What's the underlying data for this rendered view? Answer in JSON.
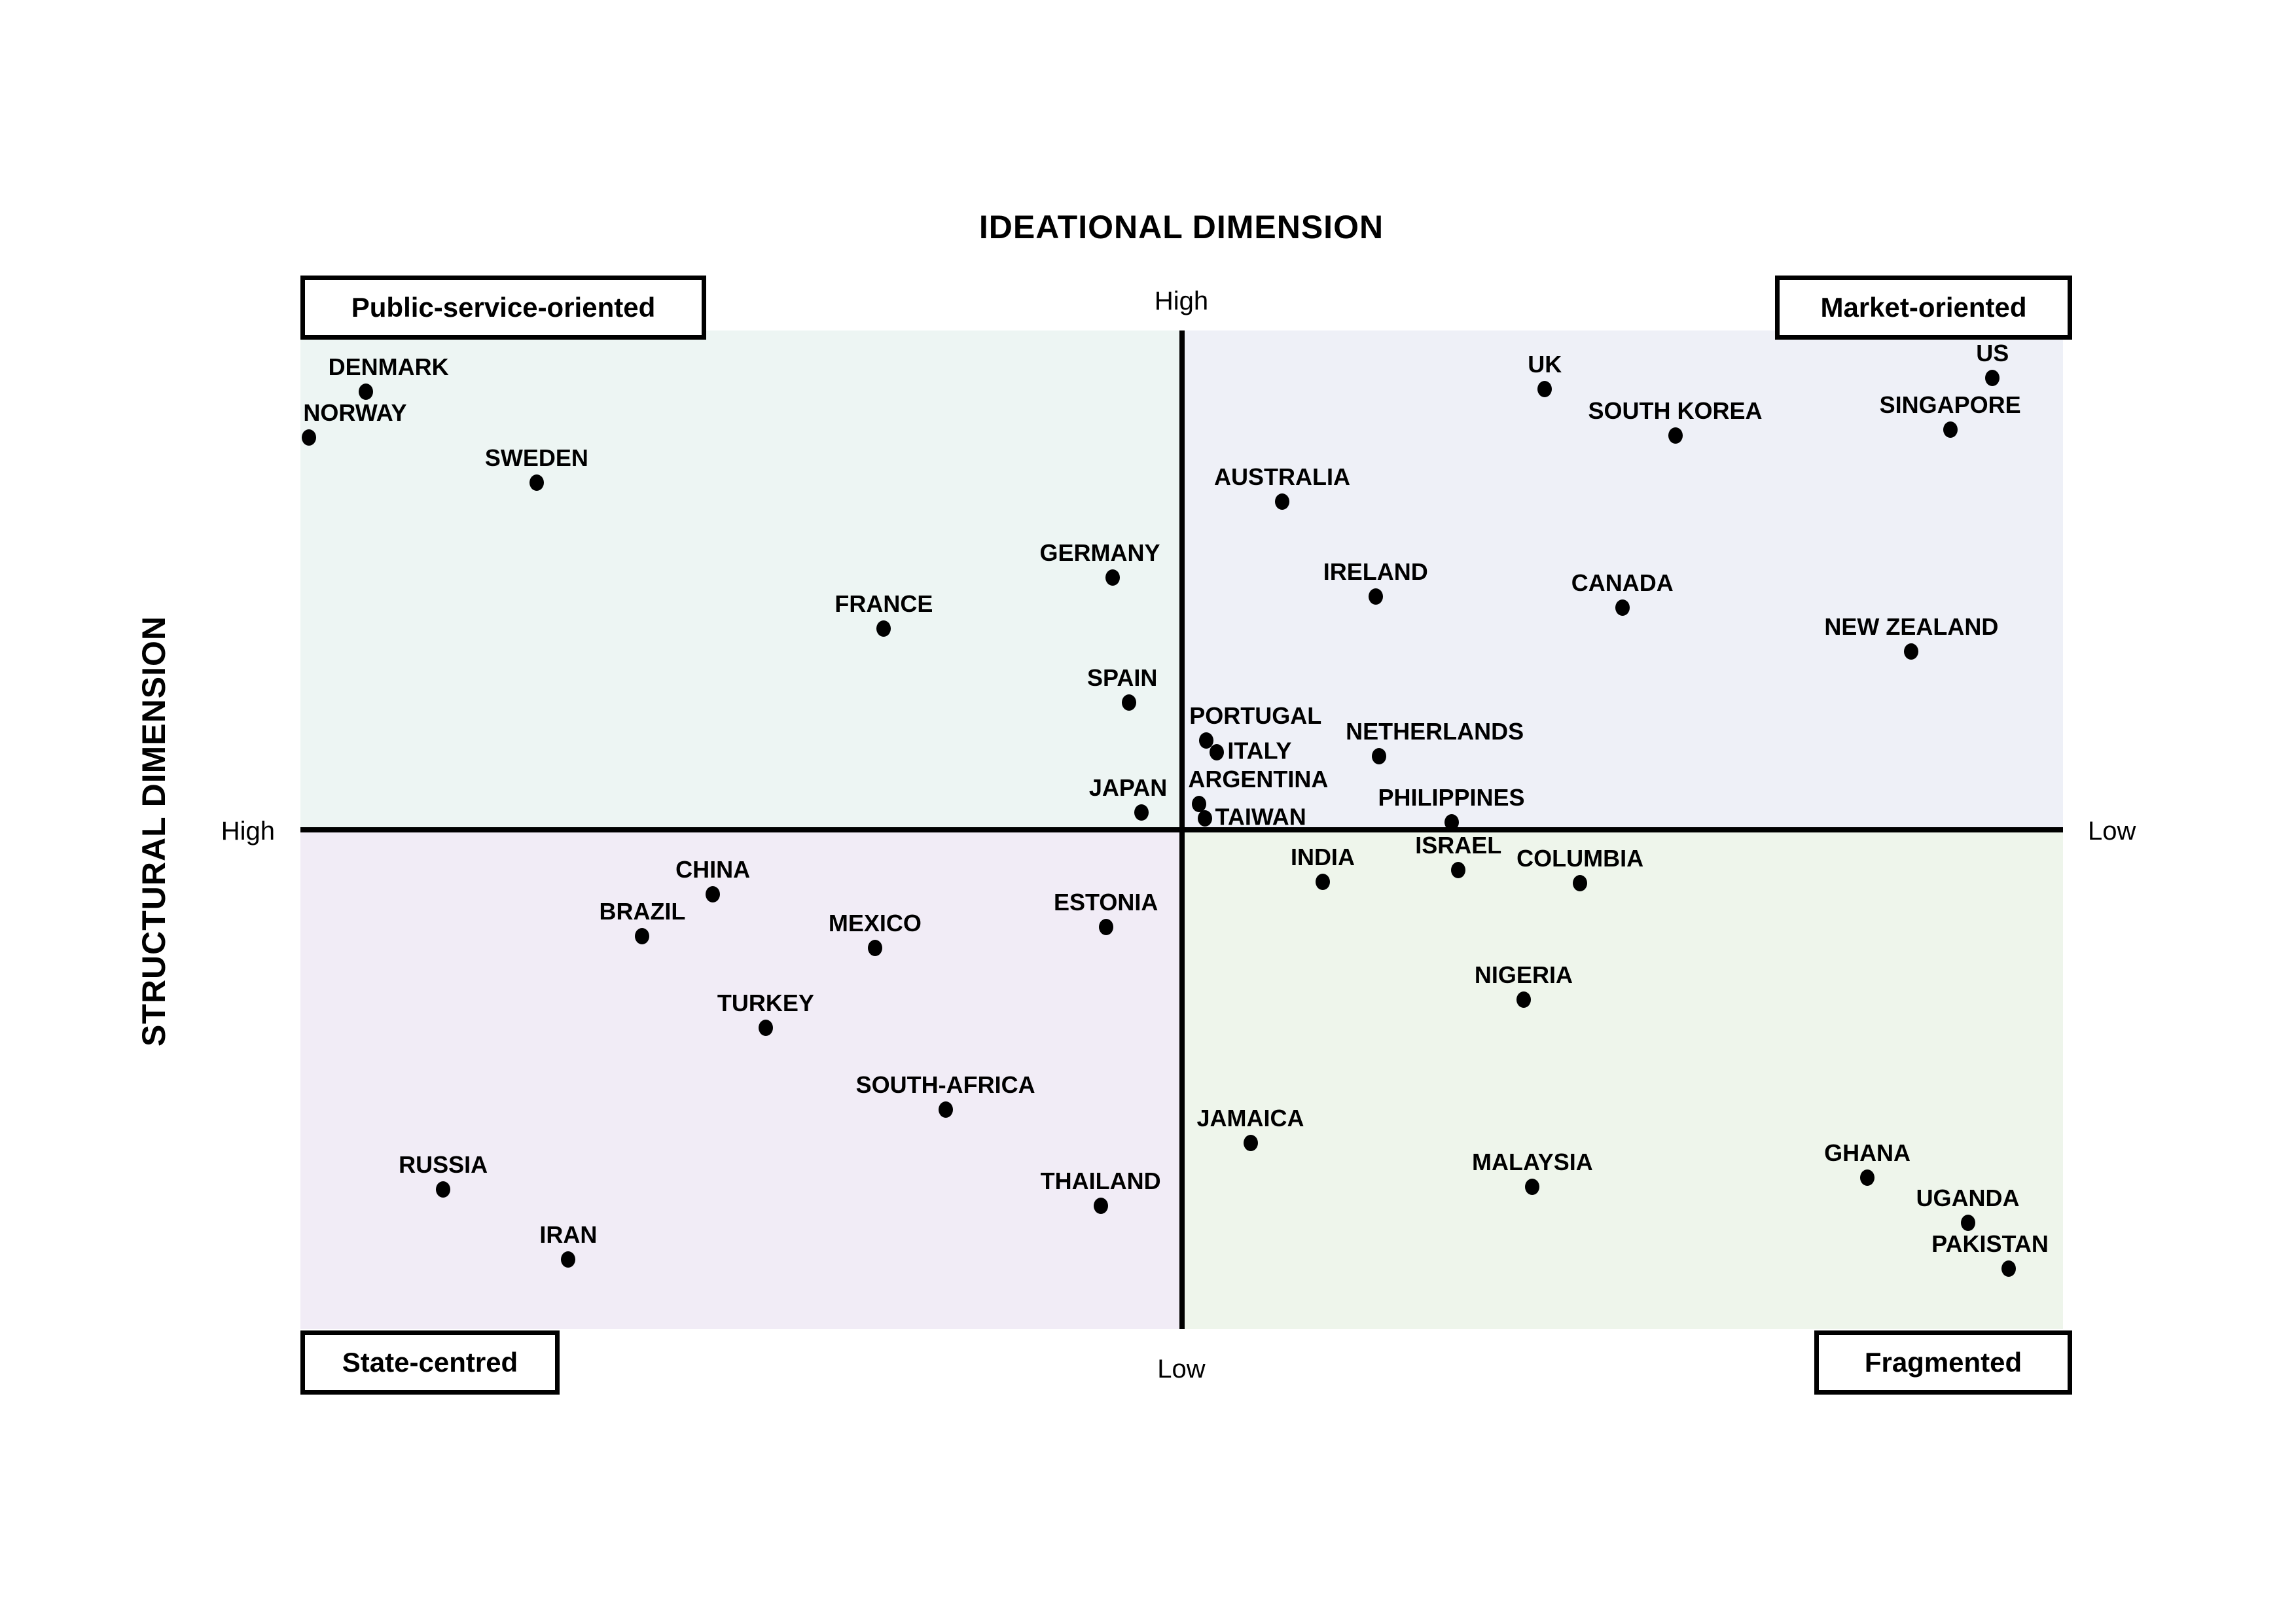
{
  "title": "IDEATIONAL DIMENSION",
  "y_axis_title": "STRUCTURAL DIMENSION",
  "axis_labels": {
    "top": "High",
    "bottom": "Low",
    "left": "High",
    "right": "Low"
  },
  "quadrant_boxes": {
    "top_left": "Public-service-oriented",
    "top_right": "Market-oriented",
    "bottom_left": "State-centred",
    "bottom_right": "Fragmented"
  },
  "colors": {
    "quad_top_left": "#edf5f3",
    "quad_top_right": "#eef0f7",
    "quad_bottom_left": "#f1ecf6",
    "quad_bottom_right": "#eef5eb",
    "axis": "#000000",
    "dot": "#000000",
    "background": "#ffffff"
  },
  "chart_data": {
    "type": "scatter",
    "title": "IDEATIONAL DIMENSION",
    "x_axis": {
      "dimension": "STRUCTURAL DIMENSION",
      "left_label": "High",
      "right_label": "Low"
    },
    "y_axis": {
      "dimension": "IDEATIONAL DIMENSION",
      "top_label": "High",
      "bottom_label": "Low"
    },
    "axis_cross": {
      "x_pct": 50,
      "y_pct": 50
    },
    "legend_position": "none",
    "grid": false,
    "quadrants": {
      "top_left": "Public-service-oriented",
      "top_right": "Market-oriented",
      "bottom_left": "State-centred",
      "bottom_right": "Fragmented"
    },
    "points": [
      {
        "label": "DENMARK",
        "x_pct": 3.7,
        "y_pct": 6.1,
        "quadrant": "Public-service-oriented",
        "label_pos": "above",
        "label_dx": 35
      },
      {
        "label": "NORWAY",
        "x_pct": 0.5,
        "y_pct": 10.7,
        "quadrant": "Public-service-oriented",
        "label_pos": "above",
        "label_dx": 70
      },
      {
        "label": "SWEDEN",
        "x_pct": 13.4,
        "y_pct": 15.2,
        "quadrant": "Public-service-oriented",
        "label_pos": "above",
        "label_dx": 0
      },
      {
        "label": "GERMANY",
        "x_pct": 46.1,
        "y_pct": 24.7,
        "quadrant": "Public-service-oriented",
        "label_pos": "above",
        "label_dx": -20
      },
      {
        "label": "FRANCE",
        "x_pct": 33.1,
        "y_pct": 29.8,
        "quadrant": "Public-service-oriented",
        "label_pos": "above",
        "label_dx": 0
      },
      {
        "label": "SPAIN",
        "x_pct": 47.0,
        "y_pct": 37.2,
        "quadrant": "Public-service-oriented",
        "label_pos": "above",
        "label_dx": -10
      },
      {
        "label": "JAPAN",
        "x_pct": 47.7,
        "y_pct": 48.2,
        "quadrant": "Public-service-oriented",
        "label_pos": "above",
        "label_dx": -20
      },
      {
        "label": "UK",
        "x_pct": 70.6,
        "y_pct": 5.8,
        "quadrant": "Market-oriented",
        "label_pos": "above",
        "label_dx": 0
      },
      {
        "label": "US",
        "x_pct": 96.0,
        "y_pct": 4.7,
        "quadrant": "Market-oriented",
        "label_pos": "above",
        "label_dx": 0
      },
      {
        "label": "SOUTH KOREA",
        "x_pct": 78.0,
        "y_pct": 10.5,
        "quadrant": "Market-oriented",
        "label_pos": "above",
        "label_dx": 0
      },
      {
        "label": "SINGAPORE",
        "x_pct": 93.6,
        "y_pct": 9.9,
        "quadrant": "Market-oriented",
        "label_pos": "above",
        "label_dx": 0
      },
      {
        "label": "AUSTRALIA",
        "x_pct": 55.7,
        "y_pct": 17.1,
        "quadrant": "Market-oriented",
        "label_pos": "above",
        "label_dx": 0
      },
      {
        "label": "IRELAND",
        "x_pct": 61.0,
        "y_pct": 26.6,
        "quadrant": "Market-oriented",
        "label_pos": "above",
        "label_dx": 0
      },
      {
        "label": "CANADA",
        "x_pct": 75.0,
        "y_pct": 27.7,
        "quadrant": "Market-oriented",
        "label_pos": "above",
        "label_dx": 0
      },
      {
        "label": "NEW ZEALAND",
        "x_pct": 91.4,
        "y_pct": 32.1,
        "quadrant": "Market-oriented",
        "label_pos": "above",
        "label_dx": 0
      },
      {
        "label": "PORTUGAL",
        "x_pct": 51.4,
        "y_pct": 41.0,
        "quadrant": "Market-oriented",
        "label_pos": "above",
        "label_dx": 75
      },
      {
        "label": "ITALY",
        "x_pct": 52.0,
        "y_pct": 42.2,
        "quadrant": "Market-oriented",
        "label_pos": "right",
        "label_dx": 0
      },
      {
        "label": "NETHERLANDS",
        "x_pct": 61.2,
        "y_pct": 42.6,
        "quadrant": "Market-oriented",
        "label_pos": "above",
        "label_dx": 85
      },
      {
        "label": "ARGENTINA",
        "x_pct": 51.0,
        "y_pct": 47.4,
        "quadrant": "Market-oriented",
        "label_pos": "above",
        "label_dx": 90
      },
      {
        "label": "TAIWAN",
        "x_pct": 51.3,
        "y_pct": 48.8,
        "quadrant": "Market-oriented",
        "label_pos": "right",
        "label_dx": 0
      },
      {
        "label": "PHILIPPINES",
        "x_pct": 65.3,
        "y_pct": 49.2,
        "quadrant": "Market-oriented",
        "label_pos": "above",
        "label_dx": 0
      },
      {
        "label": "INDIA",
        "x_pct": 58.0,
        "y_pct": 55.2,
        "quadrant": "Fragmented",
        "label_pos": "above",
        "label_dx": 0
      },
      {
        "label": "ISRAEL",
        "x_pct": 65.7,
        "y_pct": 54.0,
        "quadrant": "Fragmented",
        "label_pos": "above",
        "label_dx": 0
      },
      {
        "label": "COLUMBIA",
        "x_pct": 72.6,
        "y_pct": 55.3,
        "quadrant": "Fragmented",
        "label_pos": "above",
        "label_dx": 0
      },
      {
        "label": "NIGERIA",
        "x_pct": 69.4,
        "y_pct": 67.0,
        "quadrant": "Fragmented",
        "label_pos": "above",
        "label_dx": 0
      },
      {
        "label": "JAMAICA",
        "x_pct": 53.9,
        "y_pct": 81.3,
        "quadrant": "Fragmented",
        "label_pos": "above",
        "label_dx": 0
      },
      {
        "label": "MALAYSIA",
        "x_pct": 69.9,
        "y_pct": 85.7,
        "quadrant": "Fragmented",
        "label_pos": "above",
        "label_dx": 0
      },
      {
        "label": "GHANA",
        "x_pct": 88.9,
        "y_pct": 84.8,
        "quadrant": "Fragmented",
        "label_pos": "above",
        "label_dx": 0
      },
      {
        "label": "UGANDA",
        "x_pct": 94.6,
        "y_pct": 89.3,
        "quadrant": "Fragmented",
        "label_pos": "above",
        "label_dx": 0
      },
      {
        "label": "PAKISTAN",
        "x_pct": 96.9,
        "y_pct": 93.9,
        "quadrant": "Fragmented",
        "label_pos": "above",
        "label_dx": -28
      },
      {
        "label": "CHINA",
        "x_pct": 23.4,
        "y_pct": 56.4,
        "quadrant": "State-centred",
        "label_pos": "above",
        "label_dx": 0
      },
      {
        "label": "BRAZIL",
        "x_pct": 19.4,
        "y_pct": 60.6,
        "quadrant": "State-centred",
        "label_pos": "above",
        "label_dx": 0
      },
      {
        "label": "MEXICO",
        "x_pct": 32.6,
        "y_pct": 61.8,
        "quadrant": "State-centred",
        "label_pos": "above",
        "label_dx": 0
      },
      {
        "label": "ESTONIA",
        "x_pct": 45.7,
        "y_pct": 59.7,
        "quadrant": "State-centred",
        "label_pos": "above",
        "label_dx": 0
      },
      {
        "label": "TURKEY",
        "x_pct": 26.4,
        "y_pct": 69.8,
        "quadrant": "State-centred",
        "label_pos": "above",
        "label_dx": 0
      },
      {
        "label": "SOUTH-AFRICA",
        "x_pct": 36.6,
        "y_pct": 78.0,
        "quadrant": "State-centred",
        "label_pos": "above",
        "label_dx": 0
      },
      {
        "label": "RUSSIA",
        "x_pct": 8.1,
        "y_pct": 86.0,
        "quadrant": "State-centred",
        "label_pos": "above",
        "label_dx": 0
      },
      {
        "label": "IRAN",
        "x_pct": 15.2,
        "y_pct": 93.0,
        "quadrant": "State-centred",
        "label_pos": "above",
        "label_dx": 0
      },
      {
        "label": "THAILAND",
        "x_pct": 45.4,
        "y_pct": 87.6,
        "quadrant": "State-centred",
        "label_pos": "above",
        "label_dx": 0
      }
    ]
  }
}
